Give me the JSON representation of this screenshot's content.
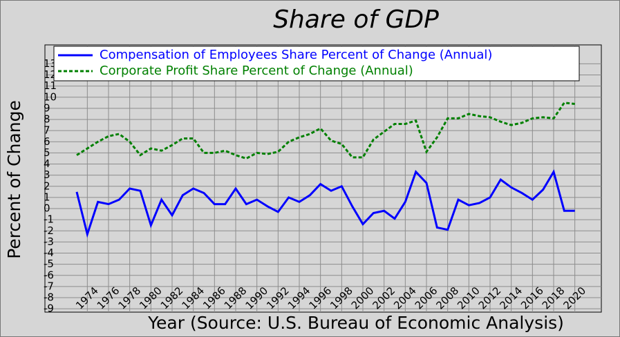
{
  "chart_data": {
    "type": "line",
    "title": "Share of GDP",
    "x_label": "Year (Source: U.S. Bureau of Economic Analysis)",
    "y_label": "Percent of Change",
    "x": [
      1973,
      1974,
      1975,
      1976,
      1977,
      1978,
      1979,
      1980,
      1981,
      1982,
      1983,
      1984,
      1985,
      1986,
      1987,
      1988,
      1989,
      1990,
      1991,
      1992,
      1993,
      1994,
      1995,
      1996,
      1997,
      1998,
      1999,
      2000,
      2001,
      2002,
      2003,
      2004,
      2005,
      2006,
      2007,
      2008,
      2009,
      2010,
      2011,
      2012,
      2013,
      2014,
      2015,
      2016,
      2017,
      2018,
      2019,
      2020
    ],
    "series": [
      {
        "name": "Compensation of Employees Share Percent of Change (Annual)",
        "color": "#0000ff",
        "dash": "solid",
        "values": [
          1.5,
          -2.3,
          0.6,
          0.4,
          0.8,
          1.8,
          1.6,
          -1.5,
          0.8,
          -0.6,
          1.2,
          1.8,
          1.4,
          0.4,
          0.4,
          1.8,
          0.4,
          0.8,
          0.2,
          -0.3,
          1.0,
          0.6,
          1.2,
          2.2,
          1.6,
          2.0,
          0.2,
          -1.4,
          -0.4,
          -0.2,
          -0.9,
          0.6,
          3.3,
          2.3,
          -1.7,
          -1.9,
          0.8,
          0.3,
          0.5,
          1.0,
          2.6,
          1.9,
          1.4,
          0.8,
          1.7,
          3.3,
          -0.2,
          -0.2
        ]
      },
      {
        "name": "Corporate Profit Share Percent of Change (Annual)",
        "color": "#008000",
        "dash": "dashed",
        "values": [
          4.8,
          5.4,
          6.0,
          6.5,
          6.7,
          6.0,
          4.8,
          5.4,
          5.2,
          5.7,
          6.3,
          6.3,
          5.0,
          5.0,
          5.2,
          4.8,
          4.5,
          5.0,
          4.9,
          5.1,
          6.0,
          6.4,
          6.7,
          7.2,
          6.1,
          5.8,
          4.6,
          4.6,
          6.2,
          6.9,
          7.6,
          7.6,
          7.9,
          5.1,
          6.4,
          8.1,
          8.1,
          8.5,
          8.3,
          8.2,
          7.8,
          7.5,
          7.7,
          8.1,
          8.2,
          8.1,
          9.5,
          9.4
        ]
      }
    ],
    "xlim": [
      1970,
      2022.5
    ],
    "xticks": [
      1974,
      1976,
      1978,
      1980,
      1982,
      1984,
      1986,
      1988,
      1990,
      1992,
      1994,
      1996,
      1998,
      2000,
      2002,
      2004,
      2006,
      2008,
      2010,
      2012,
      2014,
      2016,
      2018,
      2020
    ],
    "ylim": [
      -9.3,
      14.7
    ],
    "yticks": [
      -9,
      -8,
      -7,
      -6,
      -5,
      -4,
      -3,
      -2,
      -1,
      0,
      1,
      2,
      3,
      4,
      5,
      6,
      7,
      8,
      9,
      10,
      11,
      12,
      13
    ],
    "grid": true,
    "legend": "upper left"
  }
}
